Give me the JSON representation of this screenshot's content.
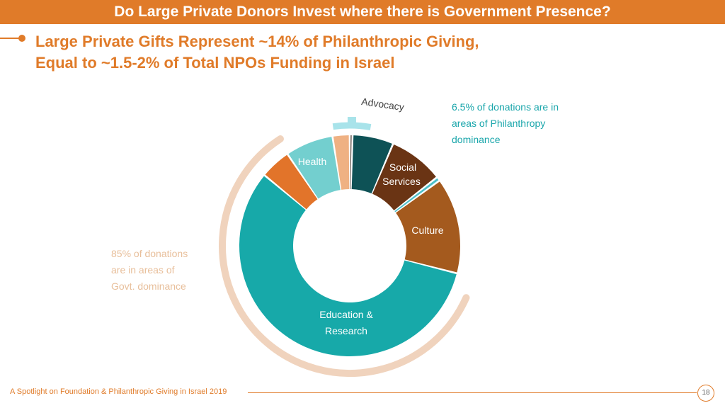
{
  "header": {
    "title": "Do Large Private Donors Invest where there is Government Presence?"
  },
  "subtitle": {
    "line1": "Large Private Gifts Represent ~14% of Philanthropic Giving,",
    "line2": "Equal to ~1.5-2% of Total NPOs Funding in Israel"
  },
  "notes": {
    "philanthropy": {
      "line1": "6.5% of donations are  in",
      "line2": "areas of Philanthropy",
      "line3": "dominance"
    },
    "government": {
      "line1": "85% of donations",
      "line2": "are in areas of",
      "line3": "Govt. dominance"
    }
  },
  "footer": {
    "text": "A Spotlight on Foundation & Philanthropic Giving in Israel 2019",
    "page": "18"
  },
  "colors": {
    "accent": "#e07b29",
    "teal": "#1aa6ab",
    "peach": "#e8bf9b",
    "peach_ring": "#f0d3bd",
    "light_teal": "#a8e3ea"
  },
  "chart_data": {
    "type": "pie",
    "variant": "donut",
    "slices": [
      {
        "label": "",
        "value": 0.4,
        "color": "#3a2a20"
      },
      {
        "label": "Advocacy",
        "value": 6.0,
        "color": "#0e5256"
      },
      {
        "label": "Social Services",
        "value": 8.0,
        "color": "#6a3414"
      },
      {
        "label": "",
        "value": 0.6,
        "color": "#4cbfc8"
      },
      {
        "label": "Culture",
        "value": 14.0,
        "color": "#a45a1e"
      },
      {
        "label": "Education & Research",
        "value": 57.0,
        "color": "#17a9a9"
      },
      {
        "label": "",
        "value": 4.5,
        "color": "#e2742a"
      },
      {
        "label": "Health",
        "value": 7.0,
        "color": "#73cfcf"
      },
      {
        "label": "",
        "value": 2.5,
        "color": "#efb183"
      }
    ],
    "slice_text": {
      "advocacy": "Advocacy",
      "social_line1": "Social",
      "social_line2": "Services",
      "culture": "Culture",
      "education_line1": "Education &",
      "education_line2": "Research",
      "health": "Health"
    },
    "groups": [
      {
        "name": "Philanthropy dominance",
        "share_percent": 6.5
      },
      {
        "name": "Govt. dominance",
        "share_percent": 85
      }
    ]
  }
}
